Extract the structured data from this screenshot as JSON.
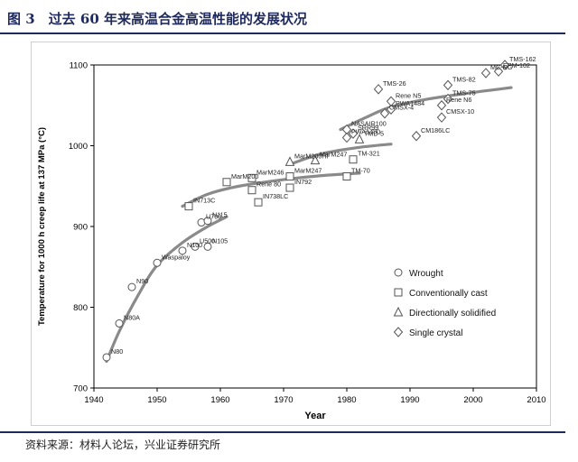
{
  "figure": {
    "title": "图 3　过去 60 年来高温合金高温性能的发展状况",
    "source": "资料来源：材料人论坛，兴业证券研究所"
  },
  "colors": {
    "accent": "#1f2a5c",
    "curve": "#8a8a8a",
    "marker": "#555555"
  },
  "chart_data": {
    "type": "scatter",
    "xlabel": "Year",
    "ylabel": "Temperature for 1000 h creep life at 137 MPa (°C)",
    "xlim": [
      1940,
      2010
    ],
    "ylim": [
      700,
      1100
    ],
    "xticks": [
      1940,
      1950,
      1960,
      1970,
      1980,
      1990,
      2000,
      2010
    ],
    "yticks": [
      700,
      800,
      900,
      1000,
      1100
    ],
    "legend_position": "bottom-right",
    "series": [
      {
        "name": "Wrought",
        "marker": "circle",
        "points": [
          {
            "label": "N80",
            "x": 1942,
            "y": 738
          },
          {
            "label": "N80A",
            "x": 1944,
            "y": 780
          },
          {
            "label": "N90",
            "x": 1946,
            "y": 825
          },
          {
            "label": "Waspaloy",
            "x": 1950,
            "y": 855
          },
          {
            "label": "N100",
            "x": 1954,
            "y": 870
          },
          {
            "label": "U500",
            "x": 1956,
            "y": 875
          },
          {
            "label": "U700",
            "x": 1957,
            "y": 905
          },
          {
            "label": "N115",
            "x": 1958,
            "y": 907
          },
          {
            "label": "N105",
            "x": 1958,
            "y": 875
          }
        ]
      },
      {
        "name": "Conventionally cast",
        "marker": "square",
        "points": [
          {
            "label": "IN713C",
            "x": 1955,
            "y": 925
          },
          {
            "label": "MarM200",
            "x": 1961,
            "y": 955
          },
          {
            "label": "IN738LC",
            "x": 1966,
            "y": 930
          },
          {
            "label": "Rene 80",
            "x": 1965,
            "y": 945
          },
          {
            "label": "MarM246",
            "x": 1965,
            "y": 960
          },
          {
            "label": "IN792",
            "x": 1971,
            "y": 948
          },
          {
            "label": "MarM247",
            "x": 1971,
            "y": 962
          },
          {
            "label": "TM-70",
            "x": 1980,
            "y": 962
          },
          {
            "label": "TM-321",
            "x": 1981,
            "y": 983
          }
        ]
      },
      {
        "name": "Directionally solidified",
        "marker": "triangle",
        "points": [
          {
            "label": "MarM200Hf",
            "x": 1971,
            "y": 980
          },
          {
            "label": "MarM247",
            "x": 1975,
            "y": 982
          },
          {
            "label": "TMD-5",
            "x": 1982,
            "y": 1008
          }
        ]
      },
      {
        "name": "Single crystal",
        "marker": "diamond",
        "points": [
          {
            "label": "NASAIR100",
            "x": 1980,
            "y": 1020
          },
          {
            "label": "PWA1480",
            "x": 1980,
            "y": 1010
          },
          {
            "label": "SRR99",
            "x": 1981,
            "y": 1015
          },
          {
            "label": "CMSX-4",
            "x": 1986,
            "y": 1040
          },
          {
            "label": "PWA1484",
            "x": 1987,
            "y": 1045
          },
          {
            "label": "Rene N5",
            "x": 1987,
            "y": 1055
          },
          {
            "label": "TMS-26",
            "x": 1985,
            "y": 1070
          },
          {
            "label": "CM186LC",
            "x": 1991,
            "y": 1012
          },
          {
            "label": "Rene N6",
            "x": 1995,
            "y": 1050
          },
          {
            "label": "CMSX-10",
            "x": 1995,
            "y": 1035
          },
          {
            "label": "TMS-75",
            "x": 1996,
            "y": 1058
          },
          {
            "label": "TMS-82",
            "x": 1996,
            "y": 1075
          },
          {
            "label": "MC-NG",
            "x": 2002,
            "y": 1090
          },
          {
            "label": "EPM-102",
            "x": 2004,
            "y": 1092
          },
          {
            "label": "TMS-162",
            "x": 2005,
            "y": 1100
          }
        ]
      }
    ],
    "trend_lines": [
      {
        "name": "Wrought trend",
        "points": [
          [
            1942,
            733
          ],
          [
            1944,
            770
          ],
          [
            1947,
            815
          ],
          [
            1950,
            852
          ],
          [
            1954,
            880
          ],
          [
            1958,
            900
          ],
          [
            1961,
            912
          ]
        ]
      },
      {
        "name": "Conventionally cast trend",
        "points": [
          [
            1954,
            925
          ],
          [
            1958,
            940
          ],
          [
            1963,
            950
          ],
          [
            1970,
            958
          ],
          [
            1976,
            963
          ],
          [
            1982,
            966
          ]
        ]
      },
      {
        "name": "Directionally solidified trend",
        "points": [
          [
            1971,
            977
          ],
          [
            1976,
            990
          ],
          [
            1982,
            998
          ],
          [
            1987,
            1002
          ]
        ]
      },
      {
        "name": "Single crystal trend",
        "points": [
          [
            1979,
            1020
          ],
          [
            1983,
            1035
          ],
          [
            1987,
            1048
          ],
          [
            1993,
            1058
          ],
          [
            2000,
            1066
          ],
          [
            2006,
            1072
          ]
        ]
      }
    ]
  }
}
